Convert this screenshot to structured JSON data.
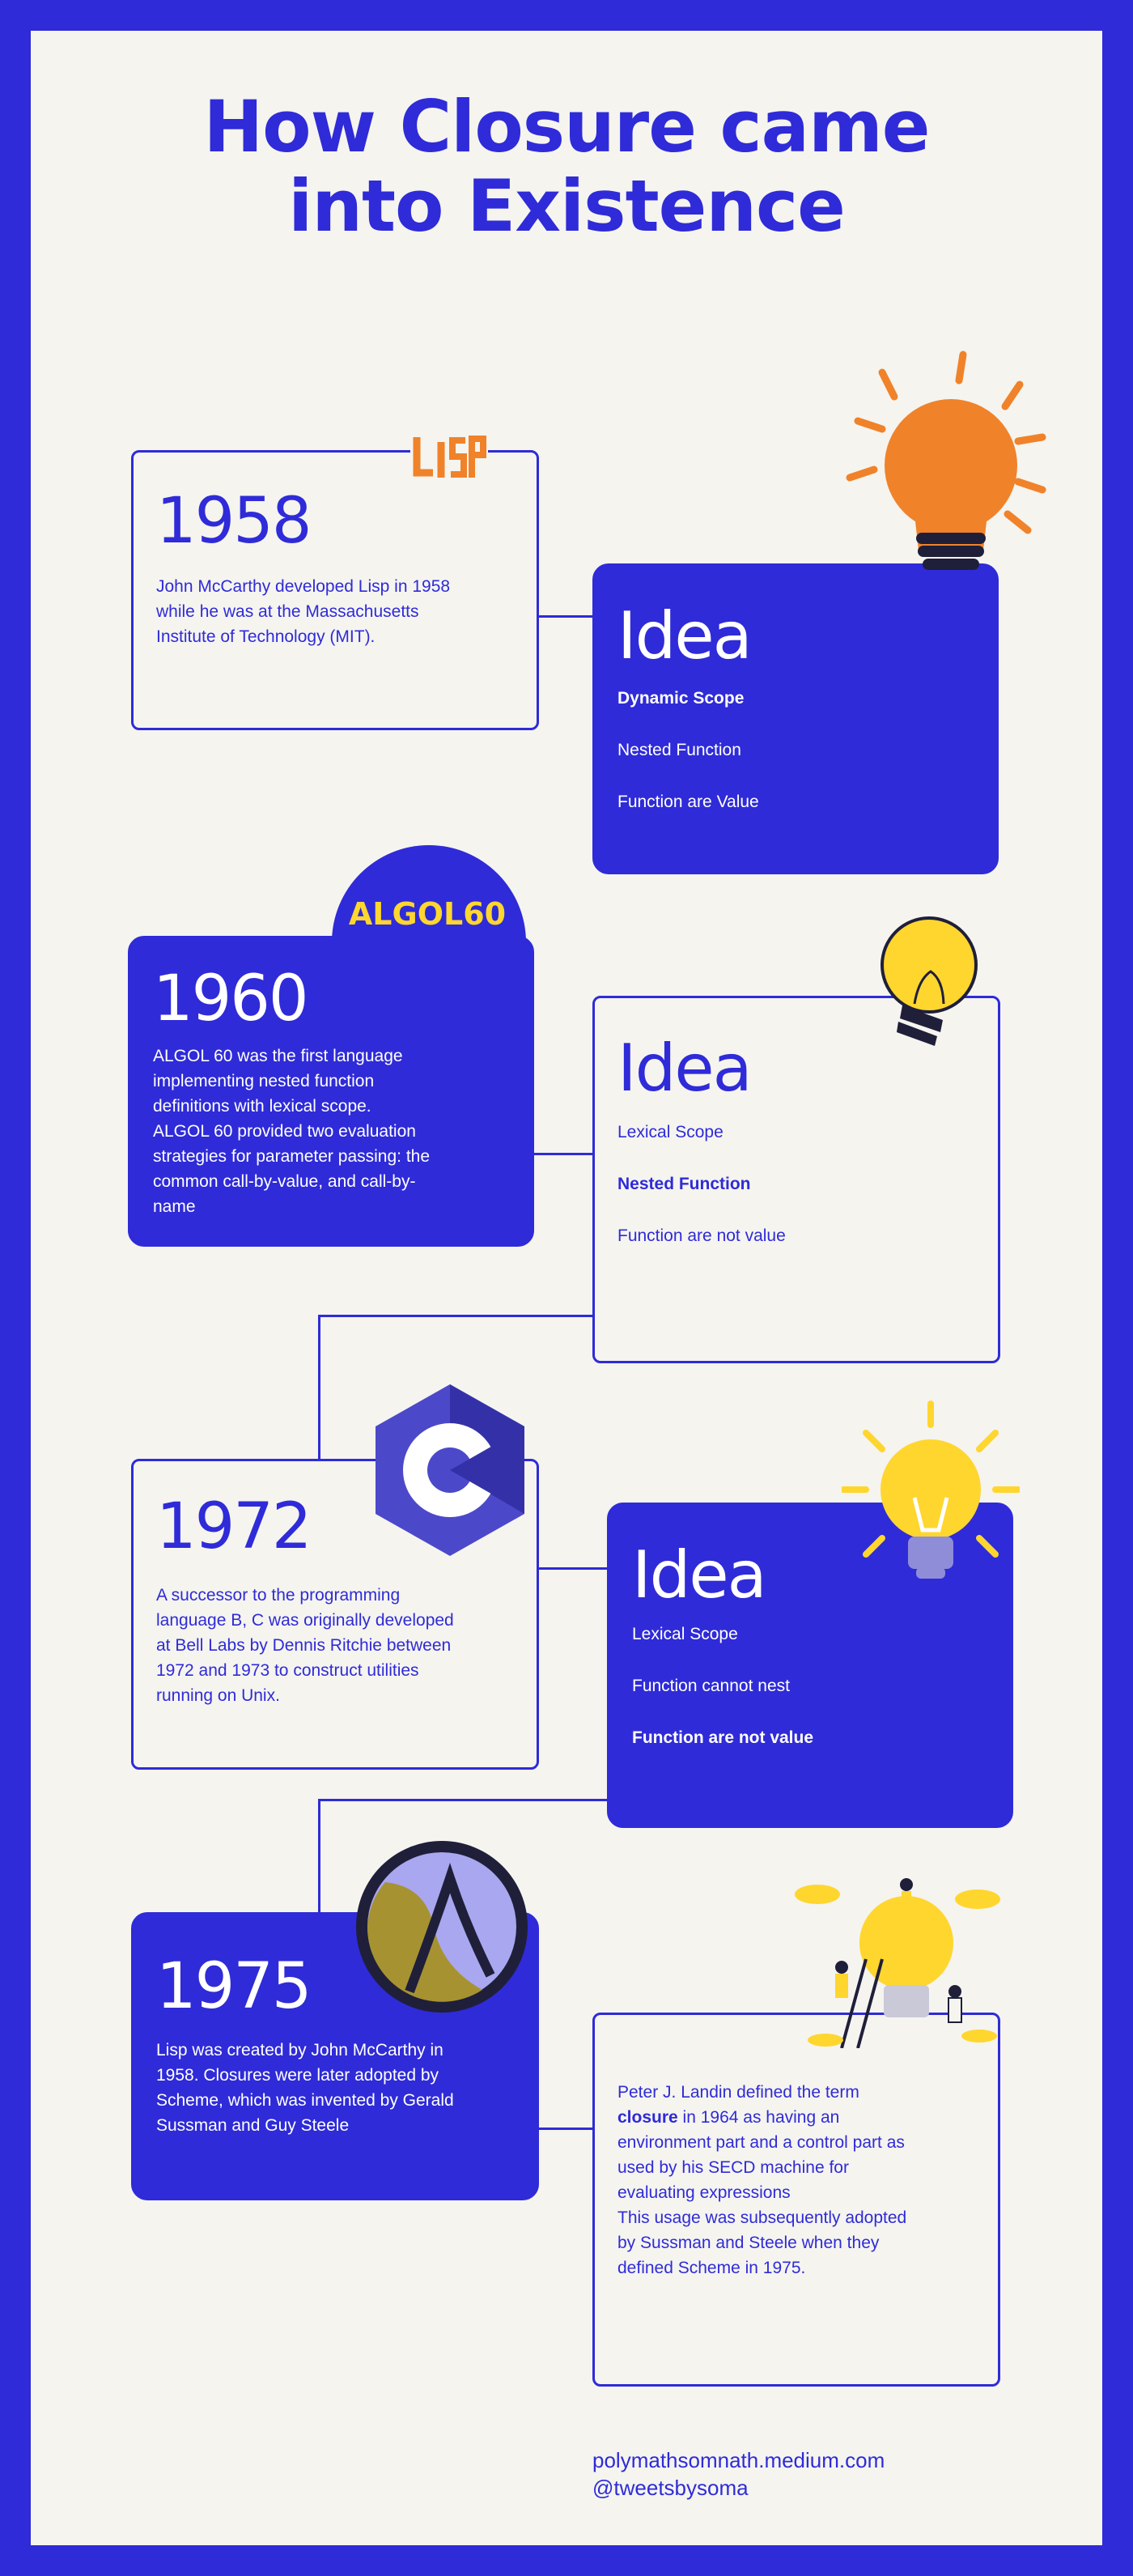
{
  "title": {
    "line1": "How Closure came",
    "line2": "into Existence"
  },
  "logos": {
    "lisp": "lisp-logo",
    "algol": "ALGOL60",
    "c": "c-language-logo",
    "clojure": "clojure-logo"
  },
  "timeline": [
    {
      "year": "1958",
      "desc": [
        "John McCarthy developed Lisp in 1958",
        "while he was at the Massachusetts",
        "Institute of Technology (MIT)."
      ]
    },
    {
      "year": "1960",
      "desc": [
        "ALGOL 60 was the first language",
        "implementing nested function",
        "definitions with lexical scope.",
        "ALGOL 60 provided two evaluation",
        "strategies for parameter passing: the",
        "common call-by-value, and call-by-",
        "name"
      ]
    },
    {
      "year": "1972",
      "desc": [
        "A successor to the programming",
        "language B, C was originally developed",
        "at Bell Labs by Dennis Ritchie between",
        "1972 and 1973 to construct utilities",
        "running on Unix."
      ]
    },
    {
      "year": "1975",
      "desc": [
        "Lisp was created by John McCarthy in",
        "1958. Closures were later adopted by",
        "Scheme, which was invented by Gerald",
        "Sussman and Guy Steele"
      ]
    }
  ],
  "ideas": [
    {
      "title": "Idea",
      "items": [
        "Dynamic Scope",
        "Nested Function",
        "Function are Value"
      ]
    },
    {
      "title": "Idea",
      "items": [
        "Lexical Scope",
        "Nested Function",
        "Function are not value"
      ]
    },
    {
      "title": "Idea",
      "items": [
        "Lexical Scope",
        "Function cannot nest",
        "Function are not value"
      ]
    }
  ],
  "landin": {
    "line1": "Peter J. Landin defined the term",
    "bold": "closure",
    "line2rest": " in 1964 as having an",
    "rest": [
      "environment part and a control part as",
      "used by his SECD machine for",
      "evaluating expressions",
      "This usage was subsequently adopted",
      "by Sussman and Steele when they",
      "defined Scheme in 1975."
    ]
  },
  "footer": {
    "blog": "polymathsomnath.medium.com",
    "handle": "@tweetsbysoma"
  },
  "colors": {
    "primary": "#2f2bd8",
    "background": "#f5f4ef",
    "accent_yellow": "#ffd62e",
    "accent_orange": "#f0822a"
  }
}
